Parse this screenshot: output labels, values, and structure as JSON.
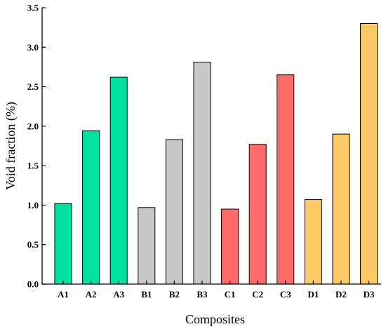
{
  "chart_data": {
    "type": "bar",
    "title": "",
    "xlabel": "Composites",
    "ylabel": "Void fraction (%)",
    "ylim": [
      0,
      3.5
    ],
    "yticks": [
      "0.0",
      "0.5",
      "1.0",
      "1.5",
      "2.0",
      "2.5",
      "3.0",
      "3.5"
    ],
    "grid": false,
    "categories": [
      "A1",
      "A2",
      "A3",
      "B1",
      "B2",
      "B3",
      "C1",
      "C2",
      "C3",
      "D1",
      "D2",
      "D3"
    ],
    "values": [
      1.02,
      1.94,
      2.62,
      0.97,
      1.83,
      2.81,
      0.95,
      1.77,
      2.65,
      1.07,
      1.9,
      3.3
    ],
    "colors": [
      "#00e0a0",
      "#00e0a0",
      "#00e0a0",
      "#c8c8c8",
      "#c8c8c8",
      "#c8c8c8",
      "#ff6b6b",
      "#ff6b6b",
      "#ff6b6b",
      "#ffc966",
      "#ffc966",
      "#ffc966"
    ]
  }
}
